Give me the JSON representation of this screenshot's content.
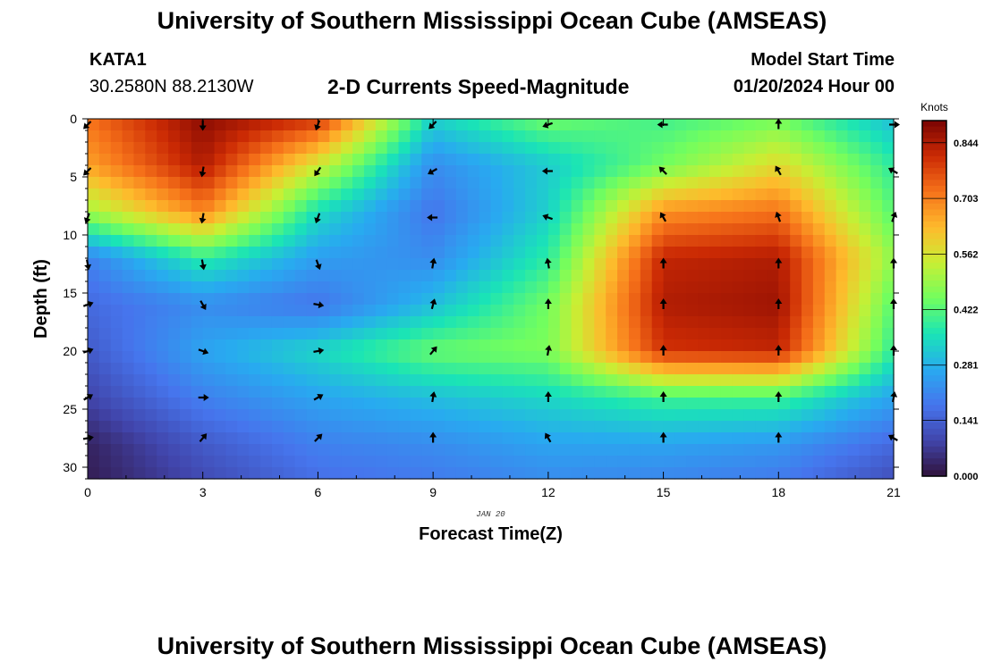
{
  "header": {
    "title": "University of Southern Mississippi Ocean Cube (AMSEAS)",
    "station_id": "KATA1",
    "station_location": "30.2580N  88.2130W",
    "variable_title": "2-D Currents Speed-Magnitude",
    "model_start_label": "Model Start Time",
    "model_start_value": "01/20/2024 Hour 00"
  },
  "footer": {
    "title": "University of Southern Mississippi Ocean Cube (AMSEAS)"
  },
  "chart_data": {
    "type": "heatmap",
    "title": "2-D Currents Speed-Magnitude",
    "xlabel": "Forecast Time(Z)",
    "ylabel": "Depth (ft)",
    "date_label": "JAN 20",
    "xlim": [
      0,
      21
    ],
    "ylim": [
      31,
      0
    ],
    "x_ticks": [
      0,
      3,
      6,
      9,
      12,
      15,
      18,
      21
    ],
    "y_ticks": [
      0,
      5,
      10,
      15,
      20,
      25,
      30
    ],
    "grid": false,
    "colorbar": {
      "label": "Knots",
      "range": [
        0,
        0.9
      ],
      "ticks": [
        "0.844",
        "0.703",
        "0.562",
        "0.422",
        "0.281",
        "0.141",
        "0.000"
      ],
      "tick_values": [
        0.844,
        0.703,
        0.562,
        0.422,
        0.281,
        0.141,
        0.0
      ]
    },
    "arrow_times": [
      0,
      3,
      6,
      9,
      12,
      15,
      18,
      21
    ],
    "arrow_depths": [
      0.5,
      4.5,
      8.5,
      12.5,
      16,
      20,
      24,
      27.5
    ],
    "arrow_directions_deg": [
      [
        225,
        180,
        200,
        225,
        250,
        270,
        0,
        90
      ],
      [
        225,
        190,
        215,
        240,
        270,
        315,
        330,
        300
      ],
      [
        200,
        190,
        200,
        270,
        290,
        330,
        340,
        20
      ],
      [
        170,
        170,
        160,
        10,
        350,
        0,
        0,
        0
      ],
      [
        70,
        150,
        100,
        15,
        0,
        0,
        0,
        0
      ],
      [
        70,
        110,
        80,
        40,
        10,
        0,
        0,
        0
      ],
      [
        60,
        90,
        60,
        10,
        0,
        0,
        0,
        10
      ],
      [
        80,
        40,
        45,
        0,
        330,
        0,
        0,
        300
      ]
    ],
    "speed_grid_times": [
      0,
      3,
      6,
      9,
      12,
      15,
      18,
      21
    ],
    "speed_grid_depths": [
      0,
      4,
      8,
      12,
      16,
      20,
      24,
      28,
      31
    ],
    "speed_knots": [
      [
        0.72,
        0.88,
        0.8,
        0.33,
        0.45,
        0.4,
        0.45,
        0.3
      ],
      [
        0.66,
        0.84,
        0.55,
        0.22,
        0.32,
        0.45,
        0.58,
        0.38
      ],
      [
        0.5,
        0.7,
        0.35,
        0.18,
        0.33,
        0.68,
        0.72,
        0.42
      ],
      [
        0.2,
        0.38,
        0.25,
        0.22,
        0.38,
        0.82,
        0.84,
        0.48
      ],
      [
        0.16,
        0.22,
        0.18,
        0.3,
        0.45,
        0.84,
        0.86,
        0.42
      ],
      [
        0.13,
        0.26,
        0.34,
        0.44,
        0.46,
        0.8,
        0.82,
        0.38
      ],
      [
        0.09,
        0.2,
        0.26,
        0.3,
        0.34,
        0.4,
        0.4,
        0.26
      ],
      [
        0.03,
        0.13,
        0.2,
        0.22,
        0.26,
        0.26,
        0.24,
        0.16
      ],
      [
        0.02,
        0.1,
        0.17,
        0.19,
        0.22,
        0.21,
        0.19,
        0.11
      ]
    ]
  }
}
